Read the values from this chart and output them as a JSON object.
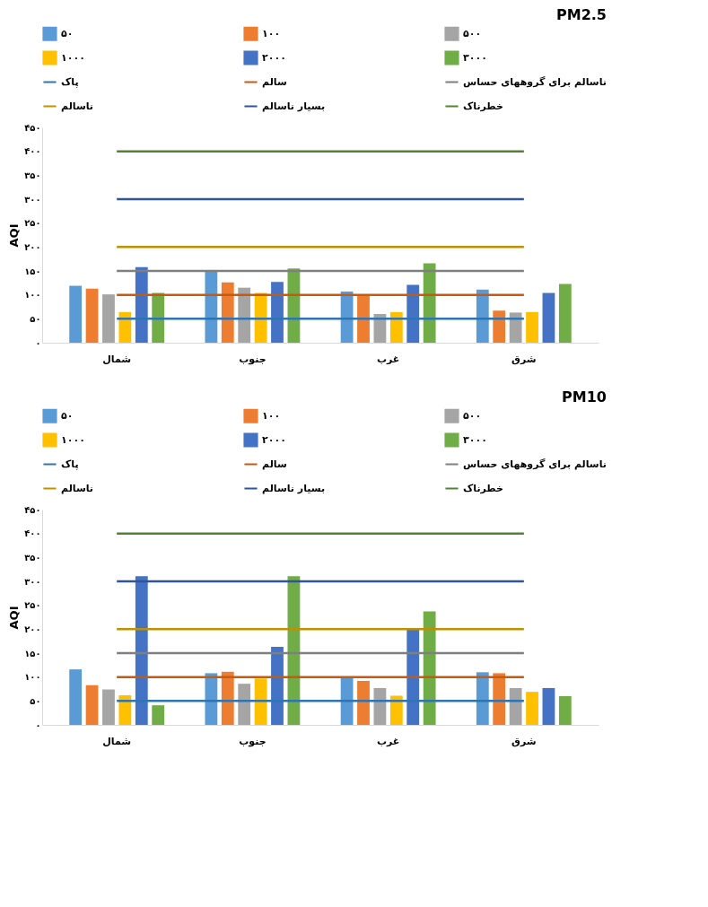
{
  "chart_data": [
    {
      "type": "bar",
      "title": "PM2.5",
      "ylabel": "AQI",
      "legend": "top",
      "grid": false,
      "categories": [
        "شمال",
        "جنوب",
        "غرب",
        "شرق"
      ],
      "ylim": [
        0,
        450
      ],
      "yticks": [
        {
          "value": 0,
          "label": "۰"
        },
        {
          "value": 50,
          "label": "۵۰"
        },
        {
          "value": 100,
          "label": "۱۰۰"
        },
        {
          "value": 150,
          "label": "۱۵۰"
        },
        {
          "value": 200,
          "label": "۲۰۰"
        },
        {
          "value": 250,
          "label": "۲۵۰"
        },
        {
          "value": 300,
          "label": "۳۰۰"
        },
        {
          "value": 350,
          "label": "۳۵۰"
        },
        {
          "value": 400,
          "label": "۴۰۰"
        },
        {
          "value": 450,
          "label": "۴۵۰"
        }
      ],
      "series": [
        {
          "name": "۵۰",
          "color": "#5b9bd5",
          "values": [
            119,
            149,
            107,
            111
          ]
        },
        {
          "name": "۱۰۰",
          "color": "#ed7d31",
          "values": [
            113,
            126,
            100,
            67
          ]
        },
        {
          "name": "۵۰۰",
          "color": "#a5a5a5",
          "values": [
            101,
            115,
            60,
            63
          ]
        },
        {
          "name": "۱۰۰۰",
          "color": "#ffc000",
          "values": [
            64,
            104,
            64,
            64
          ]
        },
        {
          "name": "۲۰۰۰",
          "color": "#4472c4",
          "values": [
            158,
            127,
            121,
            104
          ]
        },
        {
          "name": "۳۰۰۰",
          "color": "#70ad47",
          "values": [
            104,
            155,
            166,
            123
          ]
        },
        {
          "name": "پاک",
          "type": "line",
          "color": "#2e75b6",
          "values": [
            50,
            50,
            50,
            50
          ]
        },
        {
          "name": "سالم",
          "type": "line",
          "color": "#c55a11",
          "values": [
            100,
            100,
            100,
            100
          ]
        },
        {
          "name": "ناسالم برای گروههای حساس",
          "type": "line",
          "color": "#7f7f7f",
          "values": [
            150,
            150,
            150,
            150
          ]
        },
        {
          "name": "ناسالم",
          "type": "line",
          "color": "#bf9000",
          "values": [
            200,
            200,
            200,
            200
          ]
        },
        {
          "name": "بسیار ناسالم",
          "type": "line",
          "color": "#2f5597",
          "values": [
            300,
            300,
            300,
            300
          ]
        },
        {
          "name": "خطرناک",
          "type": "line",
          "color": "#548235",
          "values": [
            400,
            400,
            400,
            400
          ]
        }
      ]
    },
    {
      "type": "bar",
      "title": "PM10",
      "ylabel": "AQI",
      "legend": "top",
      "grid": false,
      "categories": [
        "شمال",
        "جنوب",
        "غرب",
        "شرق"
      ],
      "ylim": [
        0,
        450
      ],
      "yticks": [
        {
          "value": 0,
          "label": "۰"
        },
        {
          "value": 50,
          "label": "۵۰"
        },
        {
          "value": 100,
          "label": "۱۰۰"
        },
        {
          "value": 150,
          "label": "۱۵۰"
        },
        {
          "value": 200,
          "label": "۲۰۰"
        },
        {
          "value": 250,
          "label": "۲۵۰"
        },
        {
          "value": 300,
          "label": "۳۰۰"
        },
        {
          "value": 350,
          "label": "۳۵۰"
        },
        {
          "value": 400,
          "label": "۴۰۰"
        },
        {
          "value": 450,
          "label": "۴۵۰"
        }
      ],
      "series": [
        {
          "name": "۵۰",
          "color": "#5b9bd5",
          "values": [
            116,
            108,
            99,
            110
          ]
        },
        {
          "name": "۱۰۰",
          "color": "#ed7d31",
          "values": [
            83,
            111,
            92,
            108
          ]
        },
        {
          "name": "۵۰۰",
          "color": "#a5a5a5",
          "values": [
            74,
            86,
            77,
            77
          ]
        },
        {
          "name": "۱۰۰۰",
          "color": "#ffc000",
          "values": [
            62,
            97,
            61,
            69
          ]
        },
        {
          "name": "۲۰۰۰",
          "color": "#4472c4",
          "values": [
            311,
            163,
            199,
            77
          ]
        },
        {
          "name": "۳۰۰۰",
          "color": "#70ad47",
          "values": [
            41,
            311,
            237,
            60
          ]
        },
        {
          "name": "پاک",
          "type": "line",
          "color": "#2e75b6",
          "values": [
            50,
            50,
            50,
            50
          ]
        },
        {
          "name": "سالم",
          "type": "line",
          "color": "#c55a11",
          "values": [
            100,
            100,
            100,
            100
          ]
        },
        {
          "name": "ناسالم برای گروههای حساس",
          "type": "line",
          "color": "#7f7f7f",
          "values": [
            150,
            150,
            150,
            150
          ]
        },
        {
          "name": "ناسالم",
          "type": "line",
          "color": "#bf9000",
          "values": [
            200,
            200,
            200,
            200
          ]
        },
        {
          "name": "بسیار ناسالم",
          "type": "line",
          "color": "#2f5597",
          "values": [
            300,
            300,
            300,
            300
          ]
        },
        {
          "name": "خطرناک",
          "type": "line",
          "color": "#548235",
          "values": [
            400,
            400,
            400,
            400
          ]
        }
      ]
    }
  ]
}
